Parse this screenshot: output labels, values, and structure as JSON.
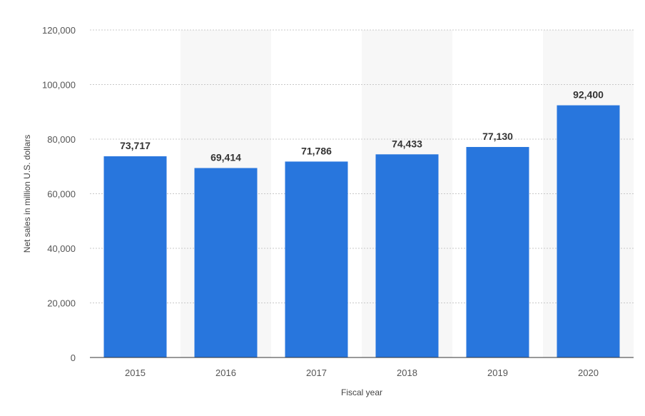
{
  "chart_data": {
    "type": "bar",
    "categories": [
      "2015",
      "2016",
      "2017",
      "2018",
      "2019",
      "2020"
    ],
    "values": [
      73717,
      69414,
      71786,
      74433,
      77130,
      92400
    ],
    "value_labels": [
      "73,717",
      "69,414",
      "71,786",
      "74,433",
      "77,130",
      "92,400"
    ],
    "xlabel": "Fiscal year",
    "ylabel": "Net sales in million U.S. dollars",
    "ylim": [
      0,
      120000
    ],
    "yticks": [
      0,
      20000,
      40000,
      60000,
      80000,
      100000,
      120000
    ],
    "ytick_labels": [
      "0",
      "20,000",
      "40,000",
      "60,000",
      "80,000",
      "100,000",
      "120,000"
    ],
    "grid": true,
    "alternating_bands": true,
    "legend": "none",
    "colors": {
      "bar": "#2876dd",
      "band": "#f7f7f7",
      "grid": "#c8c8c8"
    }
  }
}
